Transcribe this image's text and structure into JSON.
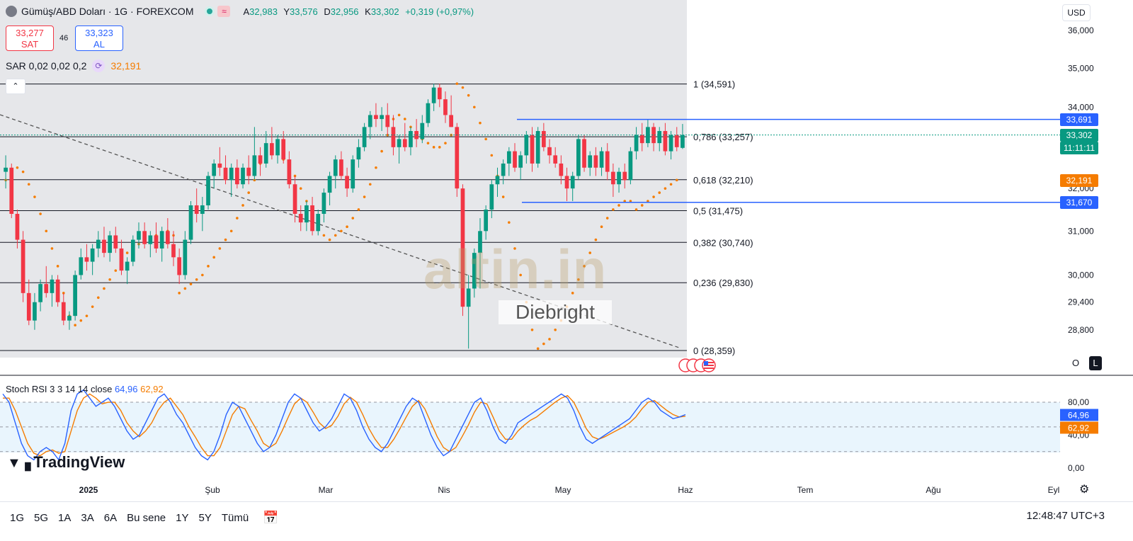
{
  "legend": {
    "title": "Gümüş/ABD Doları · 1G · FOREXCOM",
    "ohlc": [
      {
        "k": "A",
        "v": "32,983"
      },
      {
        "k": "Y",
        "v": "33,576"
      },
      {
        "k": "D",
        "v": "32,956"
      },
      {
        "k": "K",
        "v": "33,302"
      }
    ],
    "change": "+0,319 (+0,97%)",
    "wave_icon": "≈",
    "status_icon": "market-open-dot"
  },
  "trade": {
    "sell_price": "33,277",
    "sell_label": "SAT",
    "spread": "46",
    "buy_price": "33,323",
    "buy_label": "AL"
  },
  "sar": {
    "label": "SAR 0,02 0,02 0,2",
    "value": "32,191"
  },
  "collapse_icon": "⌃",
  "currency": "USD",
  "price_axis": [
    "36,000",
    "35,000",
    "34,000",
    "32,000",
    "31,000",
    "30,000",
    "29,400",
    "28,800"
  ],
  "price_labels": [
    {
      "text": "33,691",
      "color": "#2962ff"
    },
    {
      "text": "33,302",
      "color": "#089981"
    },
    {
      "text": "11:11:11",
      "color": "#089981"
    },
    {
      "text": "32,191",
      "color": "#f57c00"
    },
    {
      "text": "31,670",
      "color": "#2962ff"
    }
  ],
  "fib_levels": [
    {
      "label": "1 (34,591)",
      "value": 34.591
    },
    {
      "label": "0,786 (33,257)",
      "value": 33.257
    },
    {
      "label": "0,618 (32,210)",
      "value": 32.21
    },
    {
      "label": "0,5 (31,475)",
      "value": 31.475
    },
    {
      "label": "0,382 (30,740)",
      "value": 30.74
    },
    {
      "label": "0,236 (29,830)",
      "value": 29.83
    },
    {
      "label": "0 (28,359)",
      "value": 28.359
    }
  ],
  "ol_buttons": [
    "O",
    "L"
  ],
  "stoch": {
    "label": "Stoch RSI 3 3 14 14 close",
    "k_value": "64,96",
    "d_value": "62,92",
    "axis": [
      "80,00",
      "40,00",
      "0,00"
    ],
    "k_color": "#2962ff",
    "d_color": "#f57c00"
  },
  "time_axis": [
    "2025",
    "Şub",
    "Mar",
    "Nis",
    "May",
    "Haz",
    "Tem",
    "Ağu",
    "Eyl"
  ],
  "watermark": {
    "main": "altin.in",
    "sub": "Diebright"
  },
  "brand": "TradingView",
  "timeframes": [
    "1G",
    "5G",
    "1A",
    "3A",
    "6A",
    "Bu sene",
    "1Y",
    "5Y",
    "Tümü"
  ],
  "clock": "12:48:47 UTC+3",
  "colors": {
    "up": "#089981",
    "down": "#f23645",
    "sar": "#f57c00",
    "level": "#2962ff"
  },
  "chart_data": {
    "type": "candlestick",
    "series": [
      {
        "name": "Gümüş/ABD Doları",
        "values": [
          [
            32.4,
            32.8,
            32.0,
            32.5
          ],
          [
            32.5,
            32.6,
            31.3,
            31.4
          ],
          [
            31.4,
            31.5,
            30.6,
            30.8
          ],
          [
            30.8,
            31.0,
            29.4,
            29.6
          ],
          [
            29.6,
            29.9,
            28.9,
            29.0
          ],
          [
            29.0,
            29.6,
            28.8,
            29.4
          ],
          [
            29.4,
            29.9,
            29.2,
            29.8
          ],
          [
            29.8,
            30.2,
            29.5,
            29.6
          ],
          [
            29.6,
            30.0,
            29.3,
            29.9
          ],
          [
            29.9,
            30.0,
            29.3,
            29.4
          ],
          [
            29.4,
            29.6,
            28.9,
            29.0
          ],
          [
            29.0,
            29.2,
            28.8,
            29.1
          ],
          [
            29.1,
            30.1,
            29.0,
            30.0
          ],
          [
            30.0,
            30.6,
            29.9,
            30.4
          ],
          [
            30.4,
            30.7,
            30.1,
            30.3
          ],
          [
            30.3,
            30.7,
            30.0,
            30.6
          ],
          [
            30.6,
            31.0,
            30.4,
            30.8
          ],
          [
            30.8,
            31.1,
            30.4,
            30.5
          ],
          [
            30.5,
            31.0,
            30.3,
            30.9
          ],
          [
            30.9,
            31.1,
            30.5,
            30.6
          ],
          [
            30.6,
            30.8,
            30.0,
            30.1
          ],
          [
            30.1,
            30.4,
            29.8,
            30.3
          ],
          [
            30.3,
            30.9,
            30.2,
            30.8
          ],
          [
            30.8,
            31.2,
            30.6,
            31.0
          ],
          [
            31.0,
            31.2,
            30.6,
            30.7
          ],
          [
            30.7,
            31.0,
            30.4,
            30.9
          ],
          [
            30.9,
            31.2,
            30.5,
            30.6
          ],
          [
            30.6,
            31.1,
            30.3,
            31.0
          ],
          [
            31.0,
            31.3,
            30.6,
            30.7
          ],
          [
            30.7,
            31.0,
            30.2,
            30.4
          ],
          [
            30.4,
            30.6,
            29.8,
            30.0
          ],
          [
            30.0,
            31.0,
            29.9,
            30.8
          ],
          [
            30.8,
            31.7,
            30.7,
            31.6
          ],
          [
            31.6,
            32.0,
            31.2,
            31.4
          ],
          [
            31.4,
            31.8,
            31.0,
            31.6
          ],
          [
            31.6,
            32.4,
            31.5,
            32.3
          ],
          [
            32.3,
            32.7,
            32.0,
            32.6
          ],
          [
            32.6,
            33.0,
            32.3,
            32.5
          ],
          [
            32.5,
            32.8,
            32.1,
            32.2
          ],
          [
            32.2,
            32.6,
            31.8,
            32.5
          ],
          [
            32.5,
            32.7,
            32.0,
            32.1
          ],
          [
            32.1,
            32.6,
            32.0,
            32.5
          ],
          [
            32.5,
            32.8,
            32.1,
            32.3
          ],
          [
            32.3,
            33.5,
            32.2,
            32.8
          ],
          [
            32.8,
            33.0,
            32.3,
            32.6
          ],
          [
            32.6,
            33.4,
            32.5,
            33.1
          ],
          [
            33.1,
            33.5,
            32.7,
            32.8
          ],
          [
            32.8,
            33.3,
            32.6,
            33.2
          ],
          [
            33.2,
            33.4,
            32.6,
            32.7
          ],
          [
            32.7,
            32.9,
            32.0,
            32.1
          ],
          [
            32.1,
            32.3,
            31.2,
            31.4
          ],
          [
            31.4,
            31.6,
            31.0,
            31.2
          ],
          [
            31.2,
            31.7,
            31.0,
            31.6
          ],
          [
            31.6,
            31.8,
            30.9,
            31.0
          ],
          [
            31.0,
            31.5,
            30.9,
            31.4
          ],
          [
            31.4,
            32.0,
            31.2,
            31.9
          ],
          [
            31.9,
            32.4,
            31.6,
            32.3
          ],
          [
            32.3,
            32.8,
            32.0,
            32.7
          ],
          [
            32.7,
            32.9,
            32.2,
            32.3
          ],
          [
            32.3,
            32.5,
            31.8,
            32.0
          ],
          [
            32.0,
            32.8,
            31.9,
            32.7
          ],
          [
            32.7,
            33.2,
            32.5,
            33.0
          ],
          [
            33.0,
            33.6,
            32.9,
            33.5
          ],
          [
            33.5,
            33.9,
            33.2,
            33.8
          ],
          [
            33.8,
            34.1,
            33.5,
            33.7
          ],
          [
            33.7,
            34.0,
            33.4,
            33.8
          ],
          [
            33.8,
            34.1,
            33.3,
            33.5
          ],
          [
            33.5,
            33.8,
            32.8,
            33.0
          ],
          [
            33.0,
            33.3,
            32.6,
            33.2
          ],
          [
            33.2,
            33.6,
            32.9,
            33.0
          ],
          [
            33.0,
            33.5,
            32.8,
            33.4
          ],
          [
            33.4,
            33.7,
            33.0,
            33.2
          ],
          [
            33.2,
            33.8,
            33.1,
            33.6
          ],
          [
            33.6,
            34.2,
            33.5,
            34.1
          ],
          [
            34.1,
            34.6,
            33.9,
            34.5
          ],
          [
            34.5,
            34.6,
            34.0,
            34.2
          ],
          [
            34.2,
            34.4,
            33.6,
            33.8
          ],
          [
            33.8,
            34.3,
            33.5,
            33.5
          ],
          [
            33.5,
            33.6,
            31.8,
            32.0
          ],
          [
            32.0,
            32.1,
            29.1,
            29.3
          ],
          [
            29.3,
            30.0,
            28.4,
            29.7
          ],
          [
            29.7,
            30.6,
            29.5,
            30.5
          ],
          [
            30.5,
            31.3,
            29.7,
            31.0
          ],
          [
            31.0,
            31.6,
            30.8,
            31.5
          ],
          [
            31.5,
            32.2,
            31.3,
            32.1
          ],
          [
            32.1,
            32.5,
            31.8,
            32.3
          ],
          [
            32.3,
            32.7,
            32.1,
            32.6
          ],
          [
            32.6,
            33.0,
            32.3,
            32.9
          ],
          [
            32.9,
            33.1,
            32.4,
            32.5
          ],
          [
            32.5,
            32.9,
            32.2,
            32.8
          ],
          [
            32.8,
            33.4,
            32.6,
            33.3
          ],
          [
            33.3,
            33.5,
            32.4,
            32.6
          ],
          [
            32.6,
            33.5,
            32.5,
            33.4
          ],
          [
            33.4,
            33.6,
            32.9,
            33.0
          ],
          [
            33.0,
            33.2,
            32.6,
            32.8
          ],
          [
            32.8,
            33.0,
            32.5,
            32.6
          ],
          [
            32.6,
            32.8,
            32.1,
            32.3
          ],
          [
            32.3,
            32.5,
            31.7,
            32.0
          ],
          [
            32.0,
            32.4,
            31.7,
            32.3
          ],
          [
            32.3,
            33.3,
            32.2,
            33.2
          ],
          [
            33.2,
            33.3,
            32.4,
            32.5
          ],
          [
            32.5,
            32.9,
            32.3,
            32.8
          ],
          [
            32.8,
            33.0,
            32.3,
            32.5
          ],
          [
            32.5,
            33.0,
            32.3,
            32.9
          ],
          [
            32.9,
            33.1,
            32.2,
            32.4
          ],
          [
            32.4,
            32.6,
            31.8,
            32.1
          ],
          [
            32.1,
            32.5,
            31.9,
            32.4
          ],
          [
            32.4,
            32.6,
            32.0,
            32.2
          ],
          [
            32.2,
            33.0,
            32.1,
            32.9
          ],
          [
            32.9,
            33.5,
            32.7,
            33.3
          ],
          [
            33.3,
            33.6,
            32.9,
            33.1
          ],
          [
            33.1,
            33.7,
            33.0,
            33.5
          ],
          [
            33.5,
            33.6,
            32.9,
            33.1
          ],
          [
            33.1,
            33.5,
            32.9,
            33.4
          ],
          [
            33.4,
            33.6,
            32.8,
            32.9
          ],
          [
            32.9,
            33.4,
            32.7,
            33.3
          ],
          [
            33.3,
            33.5,
            32.9,
            33.0
          ],
          [
            32.983,
            33.576,
            32.956,
            33.302
          ]
        ]
      }
    ],
    "sar": [
      32.2,
      32.4,
      32.5,
      32.4,
      32.1,
      31.8,
      31.4,
      31.0,
      30.6,
      30.2,
      29.6,
      29.1,
      28.9,
      29.0,
      29.1,
      29.3,
      29.5,
      29.7,
      29.9,
      30.1,
      30.3,
      30.5,
      30.6,
      30.7,
      30.8,
      30.8,
      30.9,
      30.9,
      31.0,
      30.9,
      29.6,
      29.7,
      29.8,
      29.9,
      30.0,
      30.2,
      30.4,
      30.6,
      30.8,
      31.0,
      31.3,
      31.6,
      31.9,
      32.2,
      32.6,
      33.0,
      33.0,
      32.9,
      32.7,
      32.5,
      32.3,
      32.0,
      31.7,
      31.4,
      31.1,
      30.9,
      30.8,
      30.9,
      31.0,
      31.1,
      31.3,
      31.5,
      31.8,
      32.1,
      32.5,
      32.9,
      33.3,
      33.7,
      33.8,
      33.7,
      33.5,
      33.3,
      33.2,
      33.1,
      33.0,
      33.0,
      33.1,
      33.3,
      34.6,
      34.5,
      34.3,
      34.0,
      33.6,
      33.2,
      32.8,
      32.3,
      31.8,
      31.2,
      30.6,
      30.0,
      29.4,
      28.8,
      28.4,
      28.5,
      28.6,
      28.8,
      29.0,
      29.3,
      29.6,
      29.9,
      30.2,
      30.5,
      30.8,
      31.1,
      31.3,
      31.5,
      31.6,
      31.7,
      31.7,
      31.5,
      31.6,
      31.7,
      31.8,
      31.9,
      32.0,
      32.1,
      32.2
    ],
    "trendline": [
      {
        "x": 0,
        "y": 33.5
      },
      {
        "x": 120,
        "y": 28.5
      }
    ],
    "levels": [
      33.691,
      31.67
    ],
    "stoch_k": [
      90,
      80,
      55,
      30,
      15,
      10,
      20,
      25,
      20,
      10,
      30,
      70,
      90,
      95,
      85,
      75,
      80,
      85,
      75,
      60,
      45,
      35,
      40,
      55,
      70,
      85,
      90,
      80,
      65,
      55,
      40,
      25,
      15,
      10,
      20,
      40,
      65,
      80,
      75,
      60,
      45,
      30,
      20,
      25,
      40,
      60,
      80,
      90,
      85,
      70,
      55,
      45,
      50,
      60,
      75,
      90,
      85,
      70,
      50,
      35,
      25,
      20,
      30,
      45,
      60,
      75,
      85,
      80,
      60,
      40,
      25,
      15,
      20,
      35,
      50,
      65,
      80,
      85,
      70,
      50,
      35,
      30,
      40,
      55,
      60,
      65,
      70,
      75,
      80,
      85,
      90,
      85,
      70,
      50,
      35,
      30,
      35,
      40,
      45,
      50,
      55,
      60,
      70,
      80,
      85,
      80,
      70,
      65,
      60,
      62,
      64.96
    ],
    "stoch_d": [
      85,
      85,
      70,
      50,
      30,
      18,
      15,
      20,
      22,
      18,
      20,
      45,
      70,
      85,
      90,
      85,
      78,
      80,
      80,
      70,
      55,
      45,
      38,
      45,
      55,
      70,
      80,
      85,
      75,
      65,
      50,
      38,
      25,
      15,
      15,
      25,
      45,
      65,
      75,
      72,
      58,
      45,
      30,
      25,
      30,
      45,
      62,
      78,
      85,
      80,
      68,
      55,
      48,
      52,
      63,
      78,
      86,
      80,
      65,
      48,
      35,
      25,
      25,
      35,
      48,
      62,
      75,
      82,
      72,
      55,
      38,
      25,
      20,
      25,
      38,
      52,
      68,
      80,
      78,
      62,
      45,
      35,
      35,
      45,
      52,
      58,
      62,
      68,
      74,
      80,
      85,
      88,
      80,
      65,
      48,
      38,
      35,
      38,
      42,
      46,
      50,
      55,
      62,
      72,
      80,
      82,
      76,
      70,
      65,
      62,
      62.92
    ],
    "price_range": [
      28.359,
      36.0
    ],
    "stoch_range": [
      0,
      100
    ]
  }
}
